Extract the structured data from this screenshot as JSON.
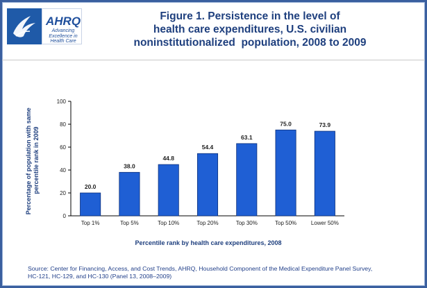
{
  "header": {
    "logo_ahrq_text": "AHRQ",
    "logo_ahrq_tagline": [
      "Advancing",
      "Excellence in",
      "Health Care"
    ],
    "title_lines": [
      "Figure 1. Persistence in the level of",
      "health care expenditures, U.S. civilian",
      "noninstitutionalized  population, 2008 to 2009"
    ]
  },
  "source_lines": [
    "Source: Center for Financing, Access, and Cost Trends, AHRQ, Household Component of the Medical Expenditure Panel Survey,",
    "HC-121, HC-129, and HC-130 (Panel 13, 2008–2009)"
  ],
  "colors": {
    "bar": "#1f5fd4",
    "bar_edge": "#0b2f7a",
    "title": "#1e3f7e",
    "frame": "#3a5f9f"
  },
  "chart_data": {
    "type": "bar",
    "categories": [
      "Top 1%",
      "Top 5%",
      "Top 10%",
      "Top 20%",
      "Top 30%",
      "Top 50%",
      "Lower 50%"
    ],
    "values": [
      20.0,
      38.0,
      44.8,
      54.4,
      63.1,
      75.0,
      73.9
    ],
    "value_labels": [
      "20.0",
      "38.0",
      "44.8",
      "54.4",
      "63.1",
      "75.0",
      "73.9"
    ],
    "xlabel": "Percentile rank by health care expenditures, 2008",
    "ylabel_lines": [
      "Percentage of population with same",
      "percentile rank in 2009"
    ],
    "ylim": [
      0,
      100
    ],
    "yticks": [
      0,
      20,
      40,
      60,
      80,
      100
    ],
    "grid": false,
    "legend": "none"
  }
}
